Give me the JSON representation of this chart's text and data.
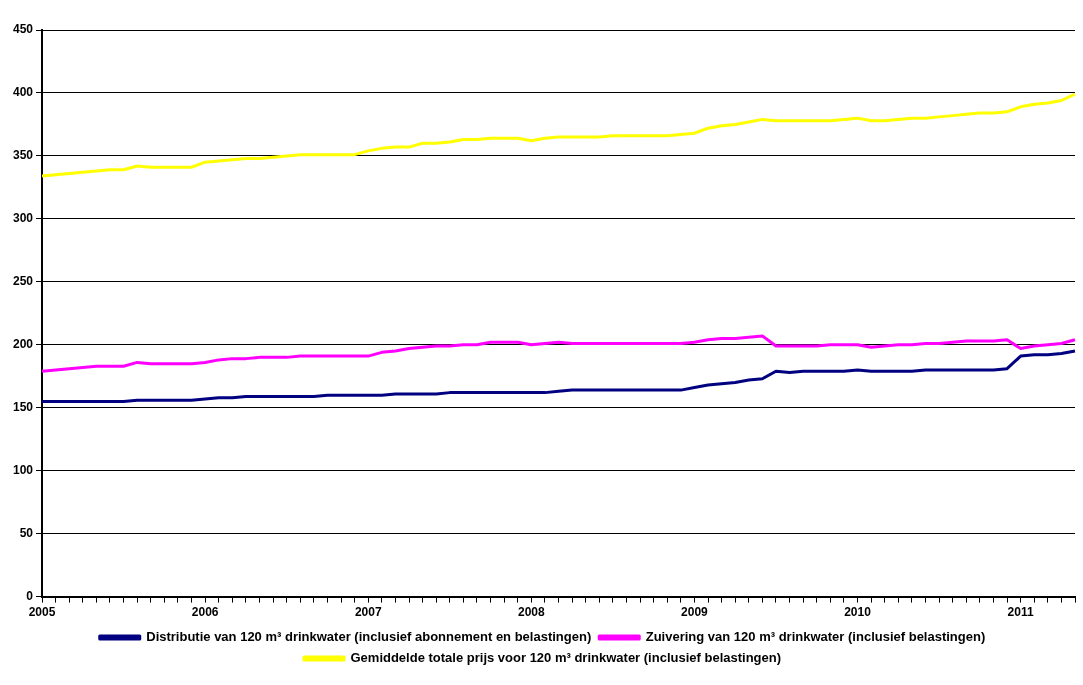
{
  "chart_data": {
    "type": "line",
    "categories": [
      "2005",
      null,
      null,
      null,
      null,
      null,
      null,
      null,
      null,
      null,
      null,
      null,
      "2006",
      null,
      null,
      null,
      null,
      null,
      null,
      null,
      null,
      null,
      null,
      null,
      "2007",
      null,
      null,
      null,
      null,
      null,
      null,
      null,
      null,
      null,
      null,
      null,
      "2008",
      null,
      null,
      null,
      null,
      null,
      null,
      null,
      null,
      null,
      null,
      null,
      "2009",
      null,
      null,
      null,
      null,
      null,
      null,
      null,
      null,
      null,
      null,
      null,
      "2010",
      null,
      null,
      null,
      null,
      null,
      null,
      null,
      null,
      null,
      null,
      null,
      "2011",
      null,
      null,
      null,
      null
    ],
    "series": [
      {
        "name": "Distributie van 120 m³ drinkwater (inclusief abonnement en belastingen)",
        "color": "#000080",
        "values": [
          155,
          155,
          155,
          155,
          155,
          155,
          155,
          156,
          156,
          156,
          156,
          156,
          157,
          158,
          158,
          159,
          159,
          159,
          159,
          159,
          159,
          160,
          160,
          160,
          160,
          160,
          161,
          161,
          161,
          161,
          162,
          162,
          162,
          162,
          162,
          162,
          162,
          162,
          163,
          164,
          164,
          164,
          164,
          164,
          164,
          164,
          164,
          164,
          166,
          168,
          169,
          170,
          172,
          173,
          179,
          178,
          179,
          179,
          179,
          179,
          180,
          179,
          179,
          179,
          179,
          180,
          180,
          180,
          180,
          180,
          180,
          181,
          191,
          192,
          192,
          193,
          195
        ]
      },
      {
        "name": "Zuivering van 120 m³ drinkwater (inclusief belastingen)",
        "color": "#ff00ff",
        "values": [
          179,
          180,
          181,
          182,
          183,
          183,
          183,
          186,
          185,
          185,
          185,
          185,
          186,
          188,
          189,
          189,
          190,
          190,
          190,
          191,
          191,
          191,
          191,
          191,
          191,
          194,
          195,
          197,
          198,
          199,
          199,
          200,
          200,
          202,
          202,
          202,
          200,
          201,
          202,
          201,
          201,
          201,
          201,
          201,
          201,
          201,
          201,
          201,
          202,
          204,
          205,
          205,
          206,
          207,
          199,
          199,
          199,
          199,
          200,
          200,
          200,
          198,
          199,
          200,
          200,
          201,
          201,
          202,
          203,
          203,
          203,
          204,
          197,
          199,
          200,
          201,
          204
        ]
      },
      {
        "name": "Gemiddelde totale prijs voor 120 m³ drinkwater (inclusief belastingen)",
        "color": "#ffff00",
        "values": [
          334,
          335,
          336,
          337,
          338,
          339,
          339,
          342,
          341,
          341,
          341,
          341,
          345,
          346,
          347,
          348,
          348,
          349,
          350,
          351,
          351,
          351,
          351,
          351,
          354,
          356,
          357,
          357,
          360,
          360,
          361,
          363,
          363,
          364,
          364,
          364,
          362,
          364,
          365,
          365,
          365,
          365,
          366,
          366,
          366,
          366,
          366,
          367,
          368,
          372,
          374,
          375,
          377,
          379,
          378,
          378,
          378,
          378,
          378,
          379,
          380,
          378,
          378,
          379,
          380,
          380,
          381,
          382,
          383,
          384,
          384,
          385,
          389,
          391,
          392,
          394,
          399
        ]
      }
    ],
    "ylim": [
      0,
      450
    ],
    "yticks": [
      0,
      50,
      100,
      150,
      200,
      250,
      300,
      350,
      400,
      450
    ],
    "grid": "y",
    "legend": "bottom",
    "marker": "none",
    "line_style": "solid"
  }
}
